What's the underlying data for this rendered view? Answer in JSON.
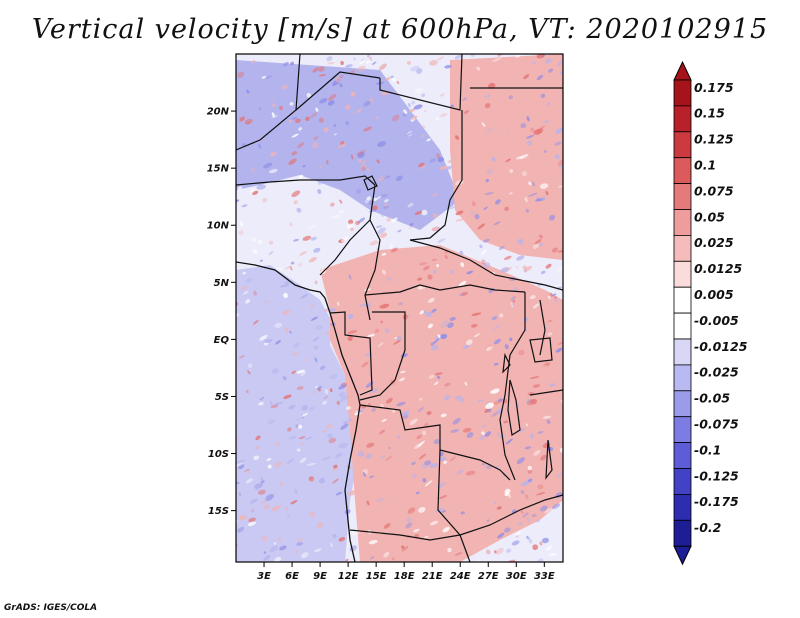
{
  "title": "Vertical velocity [m/s] at 600hPa, VT: 2020102915",
  "credit": "GrADS: IGES/COLA",
  "map": {
    "lat_labels": [
      "20N",
      "15N",
      "10N",
      "5N",
      "EQ",
      "5S",
      "10S",
      "15S"
    ],
    "lat_values": [
      20,
      15,
      10,
      5,
      0,
      -5,
      -10,
      -15
    ],
    "lon_labels": [
      "3E",
      "6E",
      "9E",
      "12E",
      "15E",
      "18E",
      "21E",
      "24E",
      "27E",
      "30E",
      "33E"
    ],
    "lon_values": [
      3,
      6,
      9,
      12,
      15,
      18,
      21,
      24,
      27,
      30,
      33
    ],
    "lon_range": [
      0,
      35
    ],
    "lat_range": [
      -19.5,
      25
    ]
  },
  "colorbar": {
    "labels": [
      "0.175",
      "0.15",
      "0.125",
      "0.1",
      "0.075",
      "0.05",
      "0.025",
      "0.0125",
      "0.005",
      "-0.005",
      "-0.0125",
      "-0.025",
      "-0.05",
      "-0.075",
      "-0.1",
      "-0.125",
      "-0.175",
      "-0.2"
    ],
    "colors": [
      "#a5141a",
      "#b9212a",
      "#cb3a3f",
      "#db5b5d",
      "#e57a7b",
      "#ee9c9c",
      "#f5bcbc",
      "#fadcdc",
      "#ffffff",
      "#ffffff",
      "#d8d8f6",
      "#babaf2",
      "#9b9bec",
      "#7c7ce4",
      "#5d5dd8",
      "#4242c6",
      "#2d2db0",
      "#1d1d96"
    ],
    "top_color": "#a5141a",
    "bottom_color": "#1d1d96"
  },
  "field_colors": {
    "ocean_blue": "#c9c9f3",
    "sahel_blue": "#b3b3ee",
    "land_red": "#f2b3b3",
    "strong_red": "#e47373",
    "strong_blue": "#8d8de6"
  }
}
